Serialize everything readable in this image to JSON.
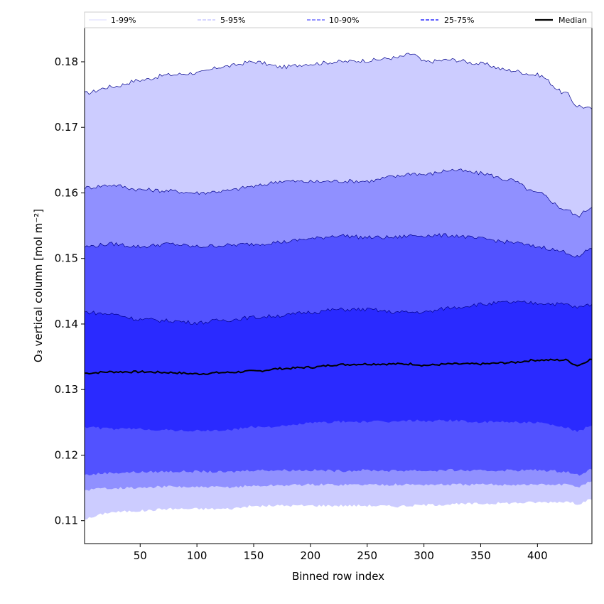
{
  "chart_data": {
    "type": "area",
    "xlabel": "Binned row index",
    "ylabel": "O₃ vertical column [mol m⁻²]",
    "xlim": [
      1,
      448
    ],
    "ylim": [
      0.1065,
      0.1852
    ],
    "xticks": [
      50,
      100,
      150,
      200,
      250,
      300,
      350,
      400
    ],
    "yticks": [
      0.11,
      0.12,
      0.13,
      0.14,
      0.15,
      0.16,
      0.17,
      0.18
    ],
    "legend_position": "top (horizontal strip above plot)",
    "colors": {
      "band_1_99": "#ccccff",
      "band_5_95": "#9090ff",
      "band_10_90": "#5252ff",
      "band_25_75": "#2a2aff",
      "median": "#000000",
      "edge": "#00008b"
    },
    "x": [
      1,
      25,
      50,
      75,
      100,
      125,
      150,
      175,
      200,
      225,
      250,
      275,
      290,
      300,
      325,
      350,
      375,
      400,
      425,
      435,
      448
    ],
    "series": [
      {
        "name": "1-99%",
        "lower": [
          0.1103,
          0.1113,
          0.1115,
          0.1118,
          0.1118,
          0.1118,
          0.1122,
          0.1123,
          0.1123,
          0.1123,
          0.1123,
          0.1122,
          0.1123,
          0.1124,
          0.1125,
          0.1126,
          0.1127,
          0.1128,
          0.1129,
          0.1126,
          0.1132
        ],
        "upper": [
          0.1752,
          0.1762,
          0.1772,
          0.178,
          0.1783,
          0.1793,
          0.18,
          0.1792,
          0.1797,
          0.18,
          0.1802,
          0.1806,
          0.1812,
          0.18,
          0.1803,
          0.1797,
          0.1787,
          0.178,
          0.1752,
          0.1733,
          0.1728
        ]
      },
      {
        "name": "5-95%",
        "lower": [
          0.1147,
          0.115,
          0.115,
          0.1152,
          0.1151,
          0.1151,
          0.1153,
          0.1154,
          0.1155,
          0.1155,
          0.1155,
          0.1155,
          0.1155,
          0.1155,
          0.1155,
          0.1155,
          0.1155,
          0.1155,
          0.1155,
          0.1152,
          0.116
        ],
        "upper": [
          0.1608,
          0.1612,
          0.1605,
          0.1603,
          0.16,
          0.1603,
          0.161,
          0.1618,
          0.1617,
          0.1618,
          0.1618,
          0.1625,
          0.163,
          0.1628,
          0.1635,
          0.163,
          0.162,
          0.16,
          0.1575,
          0.1565,
          0.1578
        ]
      },
      {
        "name": "10-90%",
        "lower": [
          0.117,
          0.1173,
          0.1174,
          0.1175,
          0.1175,
          0.1174,
          0.1177,
          0.1177,
          0.1177,
          0.1176,
          0.1177,
          0.1176,
          0.1177,
          0.1176,
          0.1177,
          0.1176,
          0.1177,
          0.1177,
          0.1175,
          0.117,
          0.1178
        ],
        "upper": [
          0.1518,
          0.1522,
          0.1518,
          0.1522,
          0.1518,
          0.152,
          0.1522,
          0.1525,
          0.153,
          0.1535,
          0.1532,
          0.1532,
          0.1535,
          0.1535,
          0.1535,
          0.153,
          0.1525,
          0.1518,
          0.151,
          0.1502,
          0.1515
        ]
      },
      {
        "name": "25-75%",
        "lower": [
          0.1243,
          0.124,
          0.124,
          0.1238,
          0.1237,
          0.1238,
          0.1243,
          0.1244,
          0.1249,
          0.1251,
          0.1251,
          0.1251,
          0.1253,
          0.1252,
          0.1253,
          0.125,
          0.1251,
          0.1249,
          0.1242,
          0.1236,
          0.1245
        ],
        "upper": [
          0.1418,
          0.1415,
          0.1407,
          0.1405,
          0.1402,
          0.1406,
          0.141,
          0.1413,
          0.1418,
          0.1422,
          0.1422,
          0.1418,
          0.1418,
          0.1418,
          0.1425,
          0.143,
          0.1433,
          0.1432,
          0.143,
          0.1425,
          0.143
        ]
      },
      {
        "name": "Median",
        "values": [
          0.1325,
          0.1327,
          0.1327,
          0.1326,
          0.1324,
          0.1326,
          0.1328,
          0.1332,
          0.1334,
          0.1338,
          0.1339,
          0.1339,
          0.1339,
          0.1337,
          0.1339,
          0.1339,
          0.1341,
          0.1345,
          0.1345,
          0.1337,
          0.1346
        ]
      }
    ],
    "legend": [
      {
        "label": "1-99%",
        "color": "#ccccff",
        "style": "solid",
        "width": 0.8
      },
      {
        "label": "5-95%",
        "color": "#9090ff",
        "style": "dashed",
        "width": 0.8
      },
      {
        "label": "10-90%",
        "color": "#5252ff",
        "style": "dashed",
        "width": 1.2
      },
      {
        "label": "25-75%",
        "color": "#2a2aff",
        "style": "dashed",
        "width": 1.6
      },
      {
        "label": "Median",
        "color": "#000000",
        "style": "solid",
        "width": 2.2
      }
    ]
  }
}
